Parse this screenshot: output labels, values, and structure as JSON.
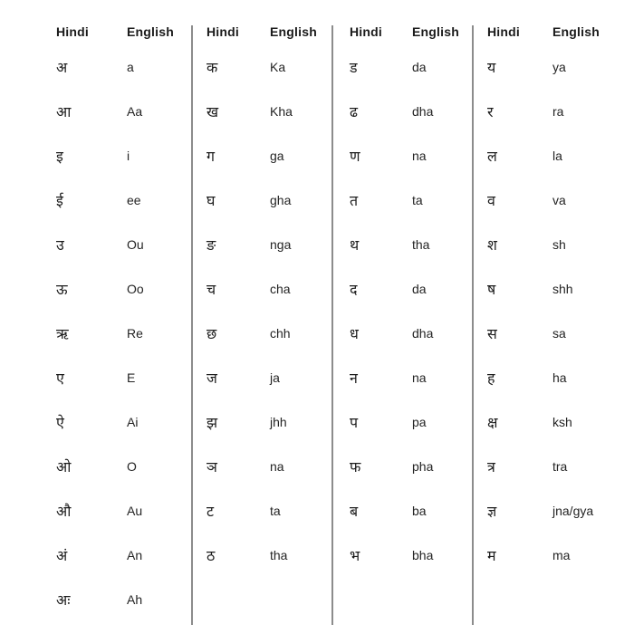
{
  "colors": {
    "background": "#ffffff",
    "text": "#1c1c1c",
    "divider": "#8c8c8c"
  },
  "table": {
    "header": {
      "hindi": "Hindi",
      "english": "English"
    },
    "columns": [
      {
        "name": "column-vowels",
        "rows": [
          {
            "hindi": "अ",
            "english": "a"
          },
          {
            "hindi": "आ",
            "english": "Aa"
          },
          {
            "hindi": "इ",
            "english": "i"
          },
          {
            "hindi": "ई",
            "english": "ee"
          },
          {
            "hindi": "उ",
            "english": "Ou"
          },
          {
            "hindi": "ऊ",
            "english": "Oo"
          },
          {
            "hindi": "ऋ",
            "english": "Re"
          },
          {
            "hindi": "ए",
            "english": "E"
          },
          {
            "hindi": "ऐ",
            "english": "Ai"
          },
          {
            "hindi": "ओ",
            "english": "O"
          },
          {
            "hindi": "औ",
            "english": "Au"
          },
          {
            "hindi": "अं",
            "english": "An"
          },
          {
            "hindi": "अः",
            "english": "Ah"
          }
        ]
      },
      {
        "name": "column-consonants-ka",
        "rows": [
          {
            "hindi": "क",
            "english": "Ka"
          },
          {
            "hindi": "ख",
            "english": "Kha"
          },
          {
            "hindi": "ग",
            "english": "ga"
          },
          {
            "hindi": "घ",
            "english": "gha"
          },
          {
            "hindi": "ङ",
            "english": "nga"
          },
          {
            "hindi": "च",
            "english": "cha"
          },
          {
            "hindi": "छ",
            "english": "chh"
          },
          {
            "hindi": "ज",
            "english": "ja"
          },
          {
            "hindi": "झ",
            "english": "jhh"
          },
          {
            "hindi": "ञ",
            "english": "na"
          },
          {
            "hindi": "ट",
            "english": "ta"
          },
          {
            "hindi": "ठ",
            "english": "tha"
          }
        ]
      },
      {
        "name": "column-consonants-da",
        "rows": [
          {
            "hindi": "ड",
            "english": "da"
          },
          {
            "hindi": "ढ",
            "english": "dha"
          },
          {
            "hindi": "ण",
            "english": "na"
          },
          {
            "hindi": "त",
            "english": "ta"
          },
          {
            "hindi": "थ",
            "english": "tha"
          },
          {
            "hindi": "द",
            "english": "da"
          },
          {
            "hindi": "ध",
            "english": "dha"
          },
          {
            "hindi": "न",
            "english": "na"
          },
          {
            "hindi": "प",
            "english": "pa"
          },
          {
            "hindi": "फ",
            "english": "pha"
          },
          {
            "hindi": "ब",
            "english": "ba"
          },
          {
            "hindi": "भ",
            "english": "bha"
          }
        ]
      },
      {
        "name": "column-consonants-ya",
        "rows": [
          {
            "hindi": "य",
            "english": "ya"
          },
          {
            "hindi": "र",
            "english": "ra"
          },
          {
            "hindi": "ल",
            "english": "la"
          },
          {
            "hindi": "व",
            "english": "va"
          },
          {
            "hindi": "श",
            "english": "sh"
          },
          {
            "hindi": "ष",
            "english": "shh"
          },
          {
            "hindi": "स",
            "english": "sa"
          },
          {
            "hindi": "ह",
            "english": "ha"
          },
          {
            "hindi": "क्ष",
            "english": "ksh"
          },
          {
            "hindi": "त्र",
            "english": "tra"
          },
          {
            "hindi": "ज्ञ",
            "english": "jna/gya"
          },
          {
            "hindi": "म",
            "english": "ma"
          }
        ]
      }
    ]
  }
}
